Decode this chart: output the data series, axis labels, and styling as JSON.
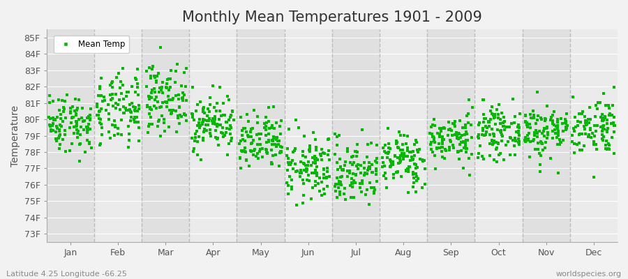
{
  "title": "Monthly Mean Temperatures 1901 - 2009",
  "ylabel": "Temperature",
  "xlabel_labels": [
    "Jan",
    "Feb",
    "Mar",
    "Apr",
    "May",
    "Jun",
    "Jul",
    "Aug",
    "Sep",
    "Oct",
    "Nov",
    "Dec"
  ],
  "ytick_labels": [
    "73F",
    "74F",
    "75F",
    "76F",
    "77F",
    "78F",
    "79F",
    "80F",
    "81F",
    "82F",
    "83F",
    "84F",
    "85F"
  ],
  "ytick_values": [
    73,
    74,
    75,
    76,
    77,
    78,
    79,
    80,
    81,
    82,
    83,
    84,
    85
  ],
  "ylim": [
    72.5,
    85.5
  ],
  "dot_color": "#00BB00",
  "bg_color": "#F2F2F2",
  "plot_bg_odd": "#EBEBEB",
  "plot_bg_even": "#E0E0E0",
  "grid_color": "#FFFFFF",
  "dashed_line_color": "#BBBBBB",
  "title_fontsize": 15,
  "axis_fontsize": 10,
  "tick_fontsize": 9,
  "subtitle_left": "Latitude 4.25 Longitude -66.25",
  "subtitle_right": "worldspecies.org",
  "legend_label": "Mean Temp",
  "num_years": 109,
  "seed": 42,
  "month_means": [
    79.8,
    80.5,
    81.3,
    79.8,
    78.5,
    77.0,
    76.8,
    77.5,
    78.8,
    79.2,
    79.3,
    79.6
  ],
  "month_stds": [
    0.9,
    1.1,
    1.0,
    0.85,
    0.9,
    1.0,
    1.0,
    0.85,
    0.75,
    0.75,
    0.85,
    0.9
  ]
}
